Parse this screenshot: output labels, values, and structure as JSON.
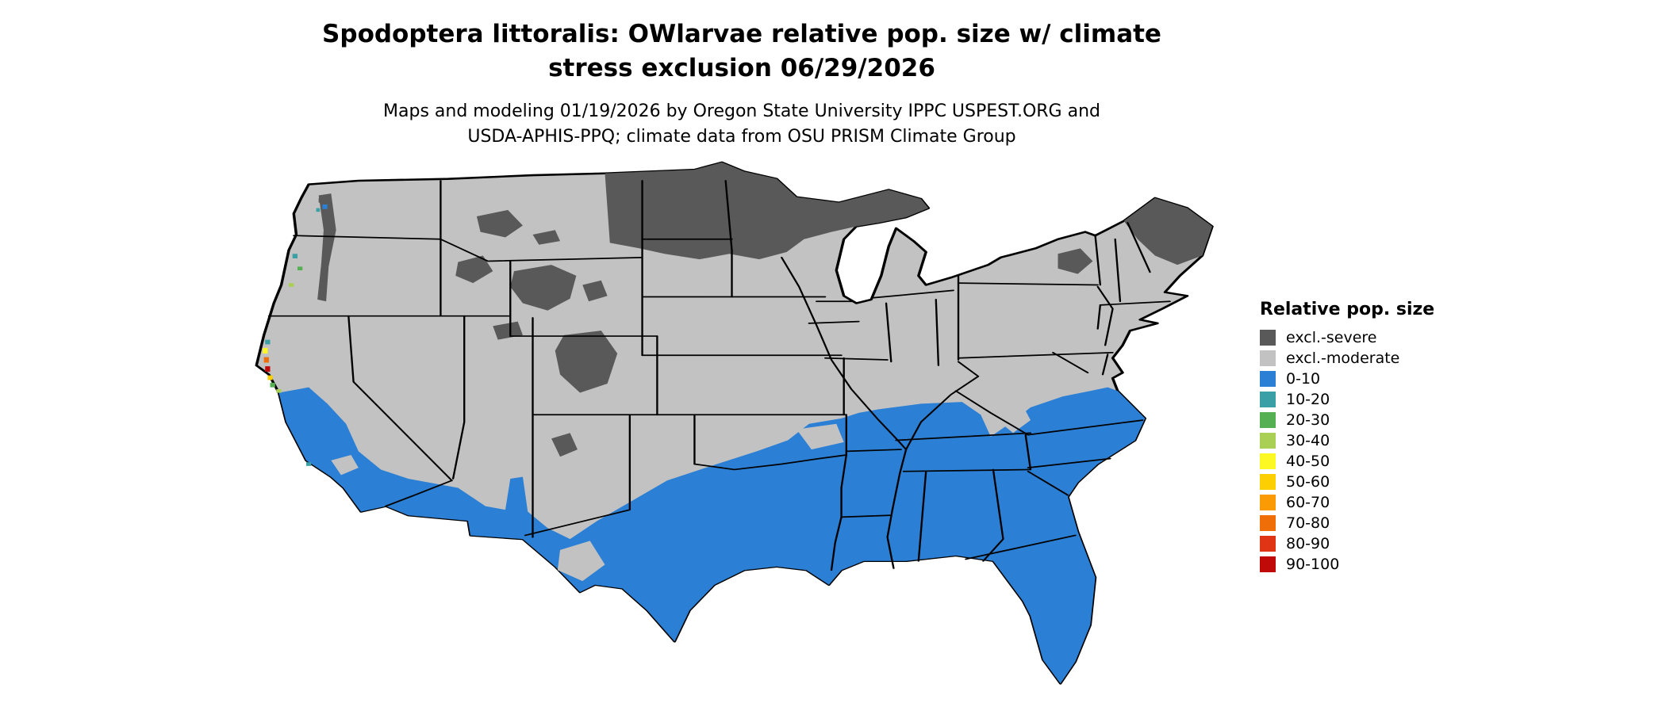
{
  "title": {
    "line1": "Spodoptera littoralis: OWlarvae relative pop. size w/ climate",
    "line2": "stress exclusion 06/29/2026"
  },
  "subtitle": {
    "line1": "Maps and modeling 01/19/2026 by Oregon State University IPPC USPEST.ORG and",
    "line2": "USDA-APHIS-PPQ; climate data from OSU PRISM Climate Group"
  },
  "legend": {
    "title": "Relative pop. size",
    "items": [
      {
        "label": "excl.-severe",
        "color": "#595959"
      },
      {
        "label": "excl.-moderate",
        "color": "#c2c2c2"
      },
      {
        "label": "0-10",
        "color": "#2b7fd4"
      },
      {
        "label": "10-20",
        "color": "#3aa0a5"
      },
      {
        "label": "20-30",
        "color": "#55b054"
      },
      {
        "label": "30-40",
        "color": "#a9cf54"
      },
      {
        "label": "40-50",
        "color": "#fbf824"
      },
      {
        "label": "50-60",
        "color": "#fccf03"
      },
      {
        "label": "60-70",
        "color": "#fa9b05"
      },
      {
        "label": "70-80",
        "color": "#f06e08"
      },
      {
        "label": "80-90",
        "color": "#e03515"
      },
      {
        "label": "90-100",
        "color": "#c00a0a"
      }
    ]
  },
  "map": {
    "outline_color": "#000000",
    "background": "#ffffff"
  }
}
